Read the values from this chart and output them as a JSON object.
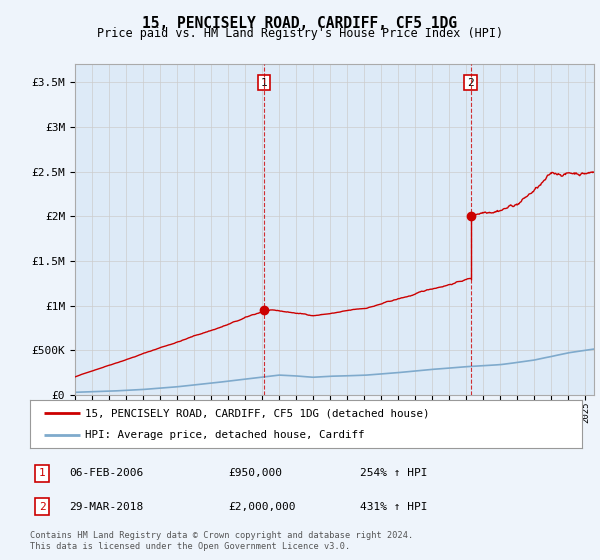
{
  "title": "15, PENCISELY ROAD, CARDIFF, CF5 1DG",
  "subtitle": "Price paid vs. HM Land Registry's House Price Index (HPI)",
  "legend_line1": "15, PENCISELY ROAD, CARDIFF, CF5 1DG (detached house)",
  "legend_line2": "HPI: Average price, detached house, Cardiff",
  "footnote1": "Contains HM Land Registry data © Crown copyright and database right 2024.",
  "footnote2": "This data is licensed under the Open Government Licence v3.0.",
  "transaction1_date": "06-FEB-2006",
  "transaction1_price": "£950,000",
  "transaction1_hpi": "254% ↑ HPI",
  "transaction1_year": 2006.1,
  "transaction1_value": 950000,
  "transaction2_date": "29-MAR-2018",
  "transaction2_price": "£2,000,000",
  "transaction2_hpi": "431% ↑ HPI",
  "transaction2_year": 2018.25,
  "transaction2_value": 2000000,
  "ylim": [
    0,
    3700000
  ],
  "xlim_start": 1995,
  "xlim_end": 2025.5,
  "red_color": "#cc0000",
  "blue_color": "#7faacc",
  "grid_color": "#cccccc",
  "bg_color": "#eef4fb",
  "plot_bg": "#ddeaf7"
}
